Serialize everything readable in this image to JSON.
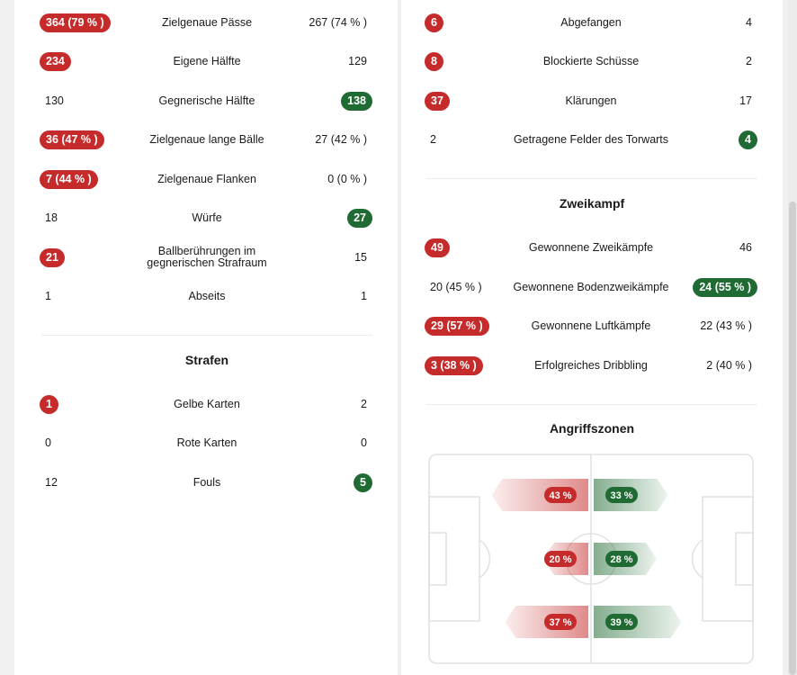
{
  "colors": {
    "home": "#c62b2b",
    "away": "#206b33"
  },
  "left_stats": [
    {
      "label": "Zielgenaue Pässe",
      "home": "364 (79 % )",
      "away": "267 (74 % )",
      "winner": "home"
    },
    {
      "label": "Eigene Hälfte",
      "home": "234",
      "away": "129",
      "winner": "home"
    },
    {
      "label": "Gegnerische Hälfte",
      "home": "130",
      "away": "138",
      "winner": "away"
    },
    {
      "label": "Zielgenaue lange Bälle",
      "home": "36 (47 % )",
      "away": "27 (42 % )",
      "winner": "home"
    },
    {
      "label": "Zielgenaue Flanken",
      "home": "7 (44 % )",
      "away": "0 (0 % )",
      "winner": "home"
    },
    {
      "label": "Würfe",
      "home": "18",
      "away": "27",
      "winner": "away"
    },
    {
      "label_line1": "Ballberührungen im",
      "label_line2": "gegnerischen Strafraum",
      "home": "21",
      "away": "15",
      "winner": "home"
    },
    {
      "label": "Abseits",
      "home": "1",
      "away": "1",
      "winner": "none"
    }
  ],
  "strafen": {
    "title": "Strafen",
    "stats": [
      {
        "label": "Gelbe Karten",
        "home": "1",
        "away": "2",
        "winner": "home"
      },
      {
        "label": "Rote Karten",
        "home": "0",
        "away": "0",
        "winner": "none"
      },
      {
        "label": "Fouls",
        "home": "12",
        "away": "5",
        "winner": "away"
      }
    ]
  },
  "right_stats": [
    {
      "label": "Abgefangen",
      "home": "6",
      "away": "4",
      "winner": "home"
    },
    {
      "label": "Blockierte Schüsse",
      "home": "8",
      "away": "2",
      "winner": "home"
    },
    {
      "label": "Klärungen",
      "home": "37",
      "away": "17",
      "winner": "home"
    },
    {
      "label": "Getragene Felder des Torwarts",
      "home": "2",
      "away": "4",
      "winner": "away"
    }
  ],
  "zweikampf": {
    "title": "Zweikampf",
    "stats": [
      {
        "label": "Gewonnene Zweikämpfe",
        "home": "49",
        "away": "46",
        "winner": "home"
      },
      {
        "label": "Gewonnene Bodenzweikämpfe",
        "home": "20 (45 % )",
        "away": "24 (55 % )",
        "winner": "away"
      },
      {
        "label": "Gewonnene Luftkämpfe",
        "home": "29 (57 % )",
        "away": "22 (43 % )",
        "winner": "home"
      },
      {
        "label": "Erfolgreiches Dribbling",
        "home": "3 (38 % )",
        "away": "2 (40 % )",
        "winner": "home"
      }
    ]
  },
  "angriffszonen": {
    "title": "Angriffszonen",
    "zones": [
      {
        "home": "43 %",
        "away": "33 %",
        "home_value": 43,
        "away_value": 33
      },
      {
        "home": "20 %",
        "away": "28 %",
        "home_value": 20,
        "away_value": 28
      },
      {
        "home": "37 %",
        "away": "39 %",
        "home_value": 37,
        "away_value": 39
      }
    ]
  }
}
